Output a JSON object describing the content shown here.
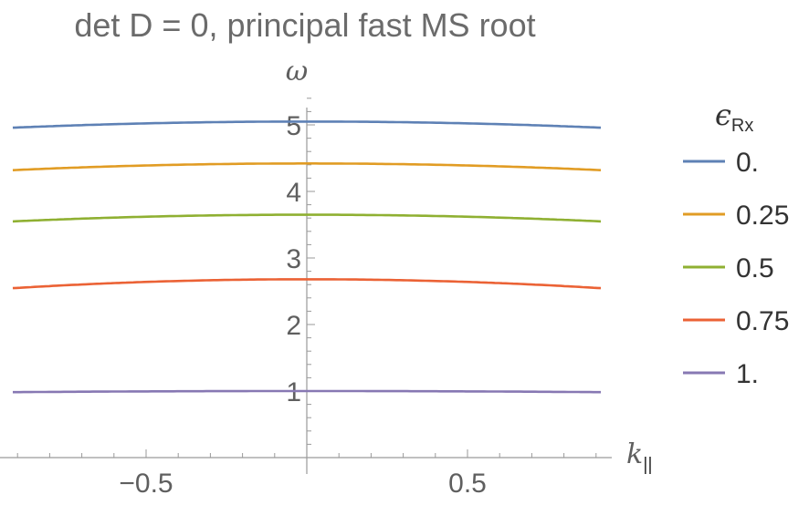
{
  "chart_data": {
    "type": "line",
    "title": "det D = 0, principal fast MS root",
    "xlabel": "k",
    "xlabel_sub": "||",
    "ylabel": "ω",
    "xlim": [
      -0.95,
      0.95
    ],
    "ylim": [
      0,
      5.4
    ],
    "x_ticks": [
      {
        "value": -0.5,
        "label": "−0.5"
      },
      {
        "value": 0.5,
        "label": "0.5"
      }
    ],
    "y_ticks": [
      {
        "value": 1,
        "label": "1"
      },
      {
        "value": 2,
        "label": "2"
      },
      {
        "value": 3,
        "label": "3"
      },
      {
        "value": 4,
        "label": "4"
      },
      {
        "value": 5,
        "label": "5"
      }
    ],
    "x_minor_step": 0.1,
    "y_minor_step": 0.2,
    "legend": {
      "title": "ϵ",
      "title_sub": "Rx",
      "position": "right"
    },
    "series": [
      {
        "name": "0.",
        "color": "#5E81B5",
        "peak": 5.05,
        "curvature": 0.11
      },
      {
        "name": "0.25",
        "color": "#E19C24",
        "peak": 4.42,
        "curvature": 0.12
      },
      {
        "name": "0.5",
        "color": "#8FB032",
        "peak": 3.65,
        "curvature": 0.12
      },
      {
        "name": "0.75",
        "color": "#EB6235",
        "peak": 2.68,
        "curvature": 0.16
      },
      {
        "name": "1.",
        "color": "#8778B3",
        "peak": 1.0,
        "curvature": 0.02
      }
    ]
  }
}
